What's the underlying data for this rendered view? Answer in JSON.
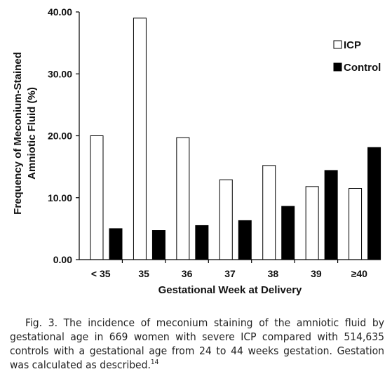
{
  "chart_data": {
    "type": "bar",
    "categories": [
      "< 35",
      "35",
      "36",
      "37",
      "38",
      "39",
      "≥40"
    ],
    "series": [
      {
        "name": "ICP",
        "values": [
          20.0,
          39.0,
          19.7,
          12.9,
          15.2,
          11.8,
          11.5
        ],
        "fill": "#ffffff",
        "stroke": "#000000"
      },
      {
        "name": "Control",
        "values": [
          5.0,
          4.7,
          5.5,
          6.3,
          8.6,
          14.4,
          18.1
        ],
        "fill": "#000000",
        "stroke": "#000000"
      }
    ],
    "xlabel": "Gestational Week at Delivery",
    "ylabel_line1": "Frequency of Meconium-Stained",
    "ylabel_line2": "Amniotic Fluid (%)",
    "ylim": [
      0,
      40
    ],
    "yticks": [
      "0.00",
      "10.00",
      "20.00",
      "30.00",
      "40.00"
    ],
    "ytick_values": [
      0,
      10,
      20,
      30,
      40
    ],
    "legend_position": "top-right",
    "grid": false
  },
  "caption": {
    "text": "Fig. 3. The incidence of meconium staining of the amniotic fluid by gestational age in 669 women with severe ICP compared with 514,635 controls with a gestational age from 24 to 44 weeks gestation. Gestation was calculated as described.",
    "ref": "14"
  }
}
